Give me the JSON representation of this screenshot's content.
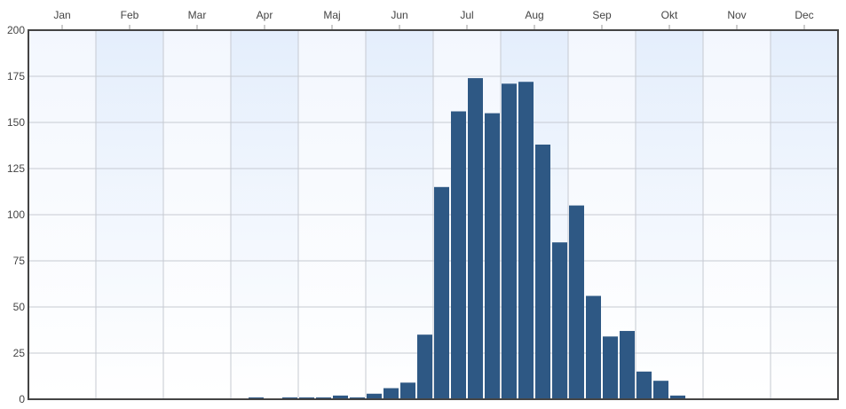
{
  "chart_data": {
    "type": "bar",
    "title": "",
    "xlabel": "",
    "ylabel": "",
    "month_labels": [
      "Jan",
      "Feb",
      "Mar",
      "Apr",
      "Maj",
      "Jun",
      "Jul",
      "Aug",
      "Sep",
      "Okt",
      "Nov",
      "Dec"
    ],
    "y_ticks": [
      0,
      25,
      50,
      75,
      100,
      125,
      150,
      175,
      200
    ],
    "ylim": [
      0,
      200
    ],
    "grid": true,
    "bar_color": "#2e5884",
    "series": [
      {
        "values": [
          0,
          0,
          0,
          0,
          0,
          0,
          0,
          0,
          0,
          0,
          0,
          0,
          0,
          1,
          0,
          1,
          1,
          1,
          2,
          1,
          3,
          6,
          9,
          35,
          115,
          156,
          174,
          155,
          171,
          172,
          138,
          85,
          105,
          56,
          34,
          37,
          15,
          10,
          2,
          0,
          0,
          0,
          0,
          0,
          0,
          0,
          0,
          0
        ]
      }
    ]
  }
}
